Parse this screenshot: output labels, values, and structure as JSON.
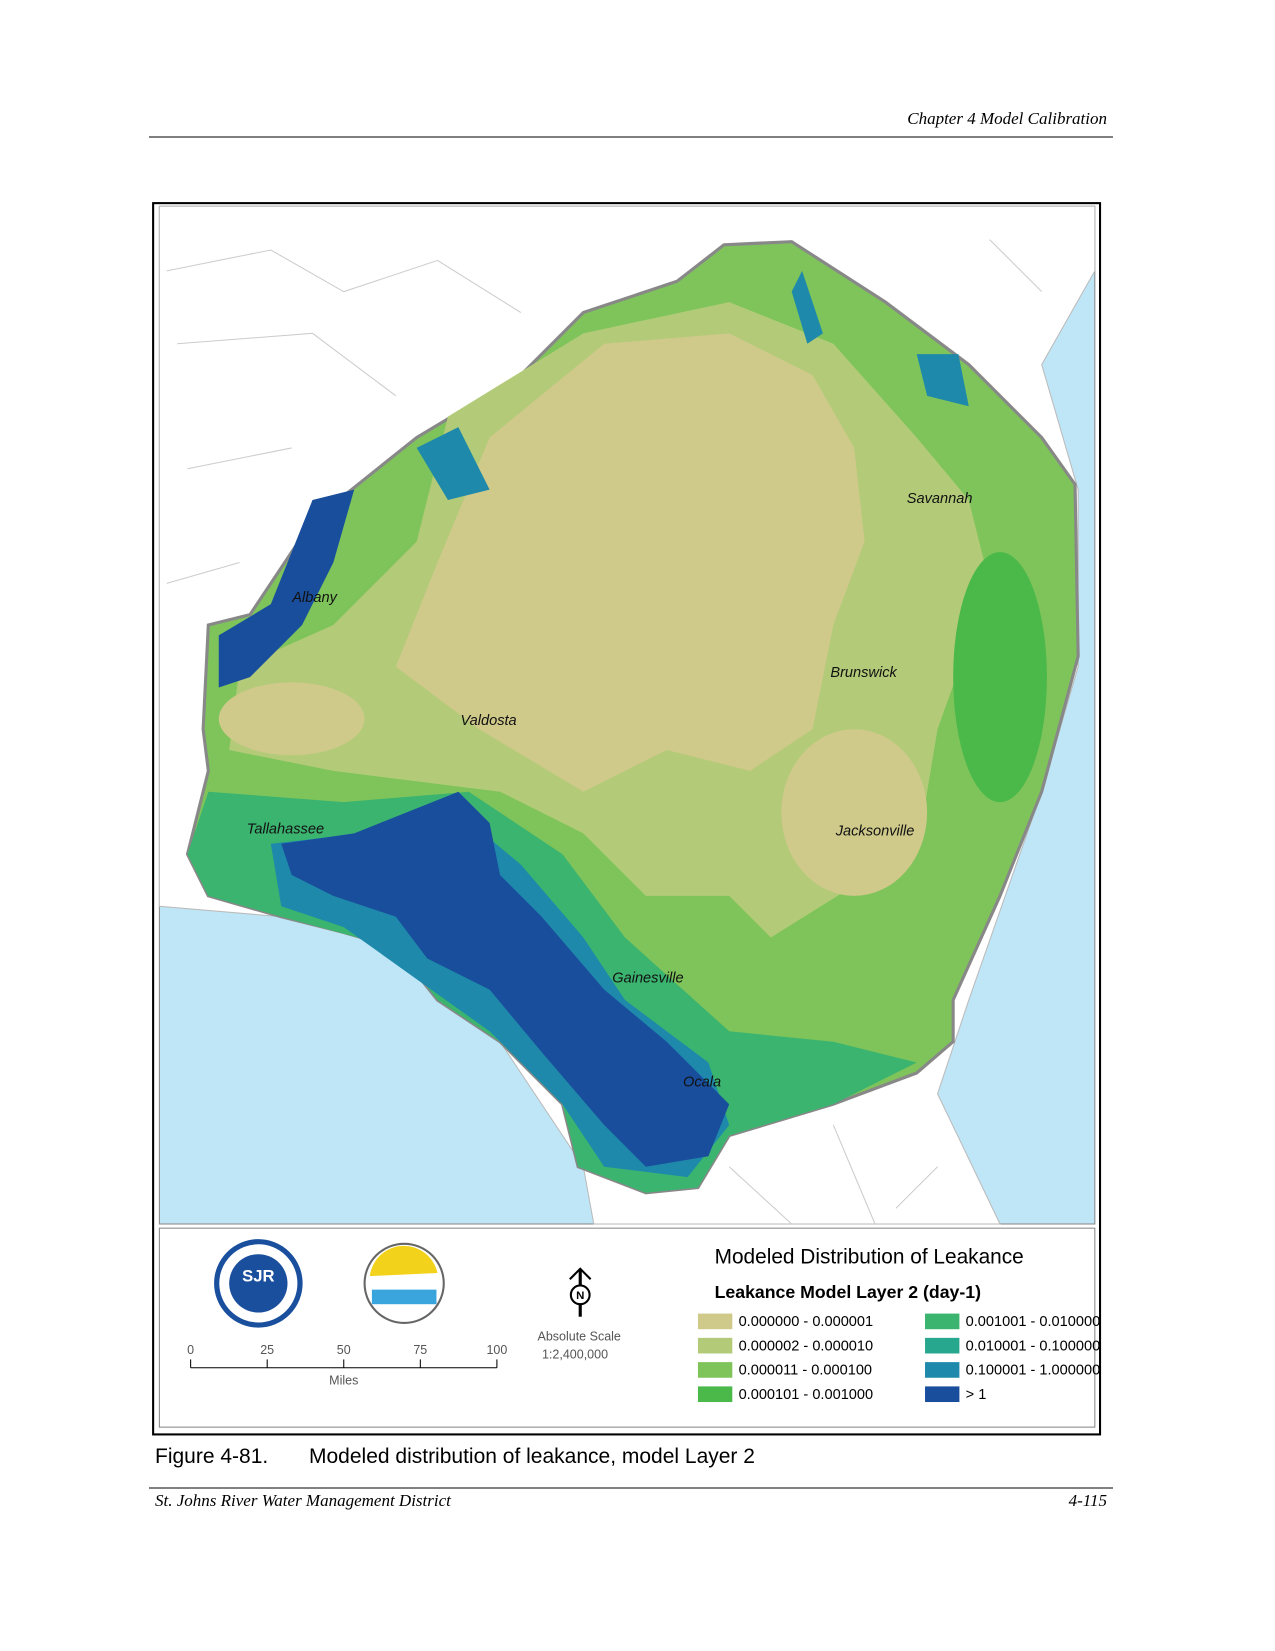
{
  "header": {
    "chapter": "Chapter 4 Model Calibration"
  },
  "map": {
    "cities": [
      "Savannah",
      "Albany",
      "Brunswick",
      "Valdosta",
      "Tallahassee",
      "Jacksonville",
      "Gainesville",
      "Ocala"
    ],
    "logos": [
      "SJR"
    ],
    "north": "N",
    "scale": {
      "ticks": [
        0,
        25,
        50,
        75,
        100
      ],
      "unit": "Miles",
      "label": "Absolute Scale",
      "ratio": "1:2,400,000"
    },
    "legend": {
      "title": "Modeled Distribution of Leakance",
      "subtitle": "Leakance Model Layer 2 (day-1)",
      "items": [
        {
          "label": "0.000000 - 0.000001",
          "color": "#cfc98a"
        },
        {
          "label": "0.000002 - 0.000010",
          "color": "#b3cb78"
        },
        {
          "label": "0.000011 - 0.000100",
          "color": "#7ec45a"
        },
        {
          "label": "0.000101 - 0.001000",
          "color": "#4bb84a"
        },
        {
          "label": "0.001001 - 0.010000",
          "color": "#3bb470"
        },
        {
          "label": "0.010001 - 0.100000",
          "color": "#28a78f"
        },
        {
          "label": "0.100001 - 1.000000",
          "color": "#1e89aa"
        },
        {
          "label": "> 1",
          "color": "#194e9d"
        }
      ]
    }
  },
  "caption": {
    "number": "Figure 4-81.",
    "text": "Modeled distribution of leakance, model Layer 2"
  },
  "footer": {
    "left": "St. Johns River Water Management District",
    "right": "4-115"
  }
}
